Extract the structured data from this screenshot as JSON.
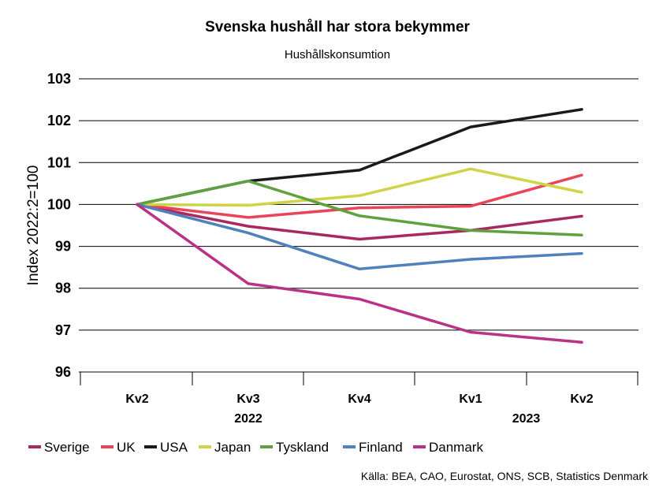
{
  "chart_data": {
    "type": "line",
    "title": "Svenska hushåll har stora bekymmer",
    "subtitle": "Hushållskonsumtion",
    "ylabel": "Index 2022:2=100",
    "xlabel": "",
    "categories": [
      "Kv2",
      "Kv3",
      "Kv4",
      "Kv1",
      "Kv2"
    ],
    "year_labels": [
      {
        "label": "2022",
        "center_index": 1,
        "span": [
          0,
          2
        ]
      },
      {
        "label": "2023",
        "center_index": 3.5,
        "span": [
          3,
          4
        ]
      }
    ],
    "ylim": [
      96,
      103
    ],
    "yticks": [
      96,
      97,
      98,
      99,
      100,
      101,
      102,
      103
    ],
    "grid": true,
    "legend_position": "bottom",
    "series": [
      {
        "name": "Sverige",
        "color": "#a8285f",
        "values": [
          100,
          99.48,
          99.17,
          99.38,
          99.72
        ]
      },
      {
        "name": "UK",
        "color": "#e8455a",
        "values": [
          100,
          99.69,
          99.92,
          99.96,
          100.7
        ]
      },
      {
        "name": "USA",
        "color": "#1a1a1a",
        "values": [
          100,
          100.56,
          100.82,
          101.85,
          102.27
        ]
      },
      {
        "name": "Japan",
        "color": "#cfd447",
        "values": [
          100,
          99.98,
          100.21,
          100.85,
          100.29
        ]
      },
      {
        "name": "Tyskland",
        "color": "#5fa03f",
        "values": [
          100,
          100.56,
          99.73,
          99.38,
          99.27
        ]
      },
      {
        "name": "Finland",
        "color": "#4f81bd",
        "values": [
          100,
          99.32,
          98.46,
          98.69,
          98.83
        ]
      },
      {
        "name": "Danmark",
        "color": "#b83387",
        "values": [
          100,
          98.11,
          97.74,
          96.95,
          96.71
        ]
      }
    ],
    "source": "Källa: BEA, CAO, Eurostat, ONS, SCB, Statistics Denmark"
  }
}
